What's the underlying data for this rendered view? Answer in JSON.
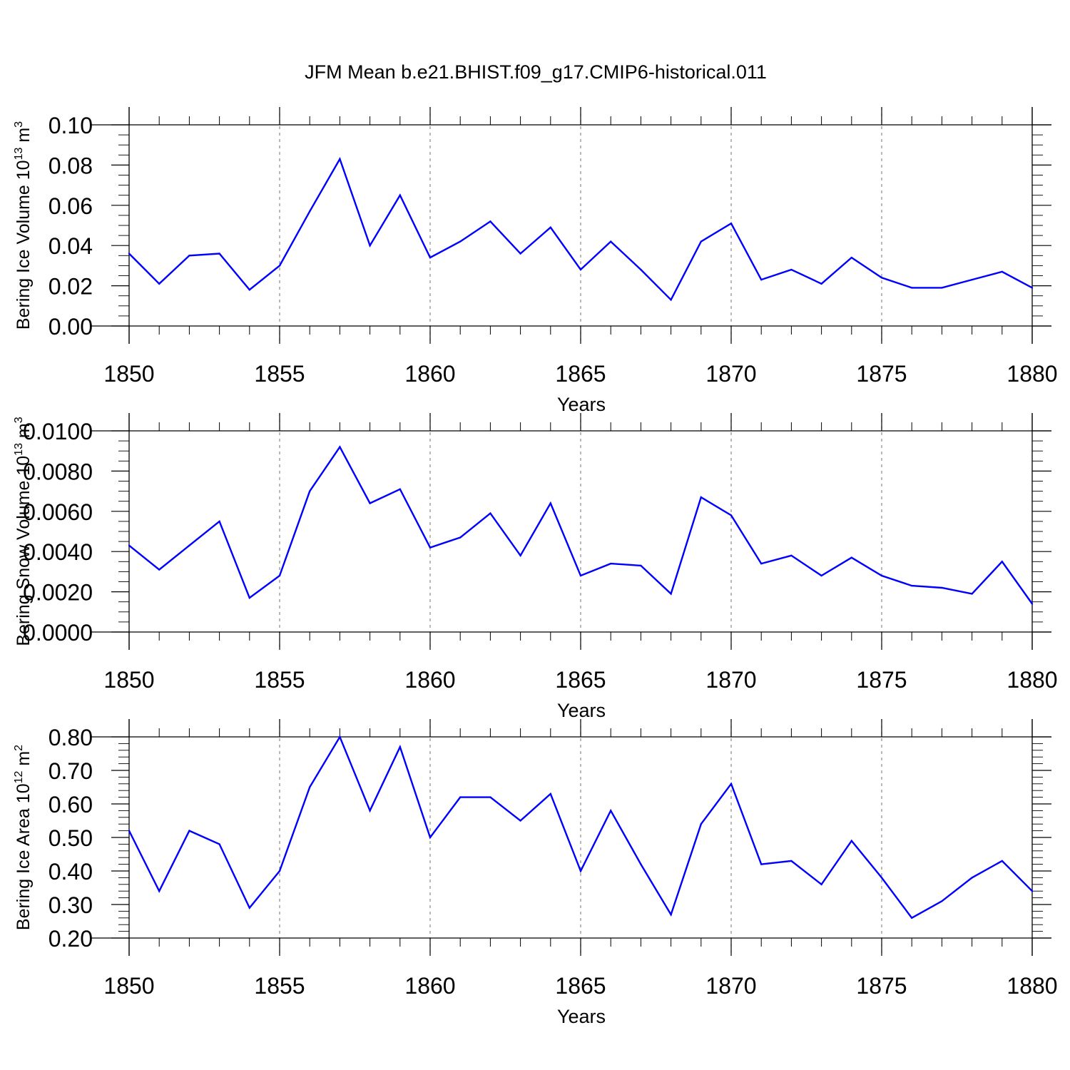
{
  "figure_title": "JFM Mean b.e21.BHIST.f09_g17.CMIP6-historical.011",
  "line_color": "#0000ff",
  "chart_data": [
    {
      "type": "line",
      "title": "JFM Mean b.e21.BHIST.f09_g17.CMIP6-historical.011",
      "ylabel": "Bering Ice Volume 10",
      "ylabel_exp": "13",
      "ylabel_unit": "m",
      "ylabel_unit_exp": "3",
      "xlabel": "Years",
      "xlim": [
        1850,
        1880
      ],
      "ylim": [
        0.0,
        0.1
      ],
      "x_ticks": [
        1850,
        1855,
        1860,
        1865,
        1870,
        1875,
        1880
      ],
      "x_tick_labels": [
        "1850",
        "1855",
        "1860",
        "1865",
        "1870",
        "1875",
        "1880"
      ],
      "y_ticks": [
        0.0,
        0.02,
        0.04,
        0.06,
        0.08,
        0.1
      ],
      "y_tick_labels": [
        "0.00",
        "0.02",
        "0.04",
        "0.06",
        "0.08",
        "0.10"
      ],
      "y_minor_step": 0.005,
      "grid": "vertical dashed at major x ticks",
      "x": [
        1850,
        1851,
        1852,
        1853,
        1854,
        1855,
        1856,
        1857,
        1858,
        1859,
        1860,
        1861,
        1862,
        1863,
        1864,
        1865,
        1866,
        1867,
        1868,
        1869,
        1870,
        1871,
        1872,
        1873,
        1874,
        1875,
        1876,
        1877,
        1878,
        1879,
        1880
      ],
      "series": [
        {
          "name": "Bering Ice Volume",
          "values": [
            0.036,
            0.021,
            0.035,
            0.036,
            0.018,
            0.03,
            0.057,
            0.083,
            0.04,
            0.065,
            0.034,
            0.042,
            0.052,
            0.036,
            0.049,
            0.028,
            0.042,
            0.028,
            0.013,
            0.042,
            0.051,
            0.023,
            0.028,
            0.021,
            0.034,
            0.024,
            0.019,
            0.019,
            0.023,
            0.027,
            0.019
          ]
        }
      ]
    },
    {
      "type": "line",
      "ylabel": "Bering Snow Volume 10",
      "ylabel_exp": "13",
      "ylabel_unit": "m",
      "ylabel_unit_exp": "3",
      "xlabel": "Years",
      "xlim": [
        1850,
        1880
      ],
      "ylim": [
        0.0,
        0.01
      ],
      "x_ticks": [
        1850,
        1855,
        1860,
        1865,
        1870,
        1875,
        1880
      ],
      "x_tick_labels": [
        "1850",
        "1855",
        "1860",
        "1865",
        "1870",
        "1875",
        "1880"
      ],
      "y_ticks": [
        0.0,
        0.002,
        0.004,
        0.006,
        0.008,
        0.01
      ],
      "y_tick_labels": [
        "0.0000",
        "0.0020",
        "0.0040",
        "0.0060",
        "0.0080",
        "0.0100"
      ],
      "y_minor_step": 0.0005,
      "grid": "vertical dashed at major x ticks",
      "x": [
        1850,
        1851,
        1852,
        1853,
        1854,
        1855,
        1856,
        1857,
        1858,
        1859,
        1860,
        1861,
        1862,
        1863,
        1864,
        1865,
        1866,
        1867,
        1868,
        1869,
        1870,
        1871,
        1872,
        1873,
        1874,
        1875,
        1876,
        1877,
        1878,
        1879,
        1880
      ],
      "series": [
        {
          "name": "Bering Snow Volume",
          "values": [
            0.0043,
            0.0031,
            0.0043,
            0.0055,
            0.0017,
            0.0028,
            0.007,
            0.0092,
            0.0064,
            0.0071,
            0.0042,
            0.0047,
            0.0059,
            0.0038,
            0.0064,
            0.0028,
            0.0034,
            0.0033,
            0.0019,
            0.0067,
            0.0058,
            0.0034,
            0.0038,
            0.0028,
            0.0037,
            0.0028,
            0.0023,
            0.0022,
            0.0019,
            0.0035,
            0.0014
          ]
        }
      ]
    },
    {
      "type": "line",
      "ylabel": "Bering Ice Area 10",
      "ylabel_exp": "12",
      "ylabel_unit": "m",
      "ylabel_unit_exp": "2",
      "xlabel": "Years",
      "xlim": [
        1850,
        1880
      ],
      "ylim": [
        0.2,
        0.8
      ],
      "x_ticks": [
        1850,
        1855,
        1860,
        1865,
        1870,
        1875,
        1880
      ],
      "x_tick_labels": [
        "1850",
        "1855",
        "1860",
        "1865",
        "1870",
        "1875",
        "1880"
      ],
      "y_ticks": [
        0.2,
        0.3,
        0.4,
        0.5,
        0.6,
        0.7,
        0.8
      ],
      "y_tick_labels": [
        "0.20",
        "0.30",
        "0.40",
        "0.50",
        "0.60",
        "0.70",
        "0.80"
      ],
      "y_minor_step": 0.02,
      "grid": "vertical dashed at major x ticks",
      "x": [
        1850,
        1851,
        1852,
        1853,
        1854,
        1855,
        1856,
        1857,
        1858,
        1859,
        1860,
        1861,
        1862,
        1863,
        1864,
        1865,
        1866,
        1867,
        1868,
        1869,
        1870,
        1871,
        1872,
        1873,
        1874,
        1875,
        1876,
        1877,
        1878,
        1879,
        1880
      ],
      "series": [
        {
          "name": "Bering Ice Area",
          "values": [
            0.52,
            0.34,
            0.52,
            0.48,
            0.29,
            0.4,
            0.65,
            0.8,
            0.58,
            0.77,
            0.5,
            0.62,
            0.62,
            0.55,
            0.63,
            0.4,
            0.58,
            0.42,
            0.27,
            0.54,
            0.66,
            0.42,
            0.43,
            0.36,
            0.49,
            0.38,
            0.26,
            0.31,
            0.38,
            0.43,
            0.34
          ]
        }
      ]
    }
  ]
}
